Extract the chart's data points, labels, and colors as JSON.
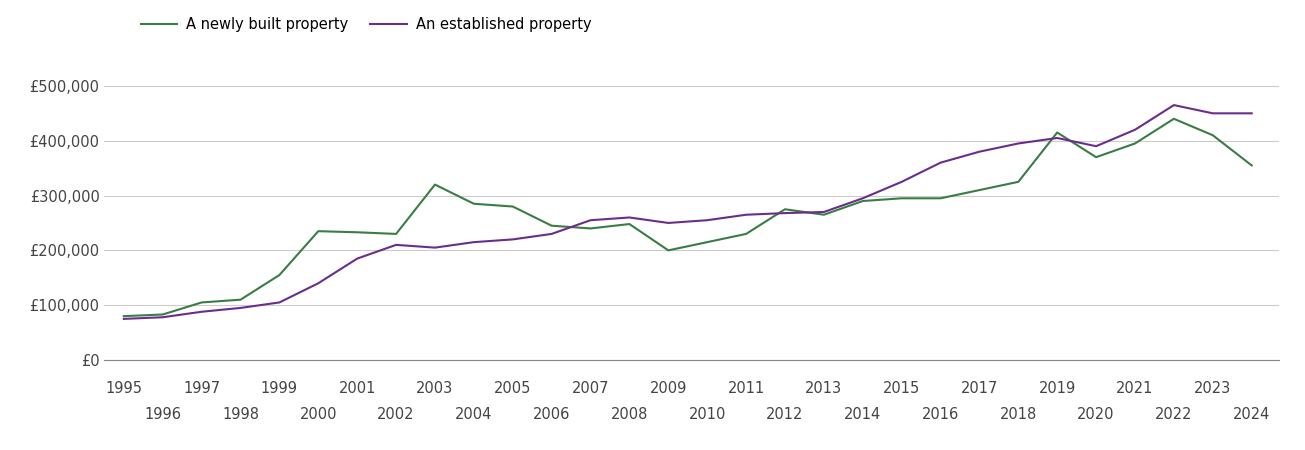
{
  "newly_built": {
    "years": [
      1995,
      1996,
      1997,
      1998,
      1999,
      2000,
      2001,
      2002,
      2003,
      2004,
      2005,
      2006,
      2007,
      2008,
      2009,
      2010,
      2011,
      2012,
      2013,
      2014,
      2015,
      2016,
      2017,
      2018,
      2019,
      2020,
      2021,
      2022,
      2023,
      2024
    ],
    "values": [
      80000,
      83000,
      105000,
      110000,
      155000,
      235000,
      233000,
      230000,
      320000,
      285000,
      280000,
      245000,
      240000,
      248000,
      200000,
      215000,
      230000,
      275000,
      265000,
      290000,
      295000,
      295000,
      310000,
      325000,
      415000,
      370000,
      395000,
      440000,
      410000,
      355000
    ]
  },
  "established": {
    "years": [
      1995,
      1996,
      1997,
      1998,
      1999,
      2000,
      2001,
      2002,
      2003,
      2004,
      2005,
      2006,
      2007,
      2008,
      2009,
      2010,
      2011,
      2012,
      2013,
      2014,
      2015,
      2016,
      2017,
      2018,
      2019,
      2020,
      2021,
      2022,
      2023,
      2024
    ],
    "values": [
      75000,
      78000,
      88000,
      95000,
      105000,
      140000,
      185000,
      210000,
      205000,
      215000,
      220000,
      230000,
      255000,
      260000,
      250000,
      255000,
      265000,
      268000,
      270000,
      295000,
      325000,
      360000,
      380000,
      395000,
      405000,
      390000,
      420000,
      465000,
      450000,
      450000
    ]
  },
  "newly_color": "#3a7d44",
  "established_color": "#6b2d8b",
  "background_color": "#ffffff",
  "legend_labels": [
    "A newly built property",
    "An established property"
  ],
  "ylim": [
    0,
    550000
  ],
  "yticks": [
    0,
    100000,
    200000,
    300000,
    400000,
    500000
  ],
  "ytick_labels": [
    "£0",
    "£100,000",
    "£200,000",
    "£300,000",
    "£400,000",
    "£500,000"
  ],
  "grid_color": "#cccccc",
  "line_width": 1.5,
  "font_size": 10.5,
  "xlim_left": 1994.5,
  "xlim_right": 2024.7
}
